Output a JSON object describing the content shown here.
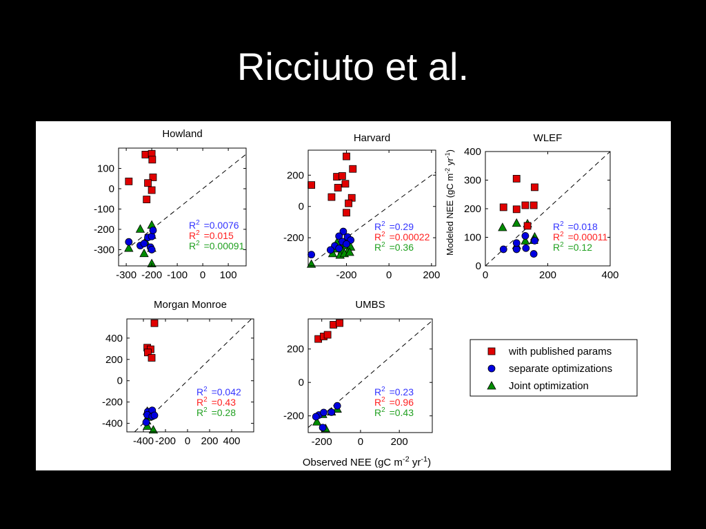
{
  "slide": {
    "title": "Ricciuto et al."
  },
  "colors": {
    "published": "#e00000",
    "separate": "#0000e0",
    "joint": "#008c00",
    "r2_separate": "#3333ff",
    "r2_published": "#ff2020",
    "r2_joint": "#20a020"
  },
  "figure": {
    "y_axis_label": "Modeled NEE (gC m-2 yr-1)",
    "x_axis_label": "Observed NEE (gC m-2 yr-1)"
  },
  "legend": {
    "entries": [
      {
        "label": "with published params",
        "marker": "square",
        "series": "published"
      },
      {
        "label": "separate optimizations",
        "marker": "circle",
        "series": "separate"
      },
      {
        "label": "Joint optimization",
        "marker": "triangle",
        "series": "joint"
      }
    ]
  },
  "chart_data": [
    {
      "type": "scatter",
      "title": "Howland",
      "xlim": [
        -330,
        170
      ],
      "ylim": [
        -380,
        200
      ],
      "xticks": [
        -300,
        -200,
        -100,
        0,
        100
      ],
      "xtick_labels": [
        "-300",
        "-200",
        "-100",
        "0",
        "100"
      ],
      "yticks": [
        100,
        0,
        -100,
        -200,
        -300
      ],
      "ytick_labels": [
        "100",
        "0",
        "-100",
        "-200",
        "-300"
      ],
      "one_to_one_line": true,
      "series": [
        {
          "name": "with published params",
          "marker": "square",
          "points": [
            [
              -225,
              168
            ],
            [
              -200,
              172
            ],
            [
              -198,
              143
            ],
            [
              -290,
              36
            ],
            [
              -195,
              56
            ],
            [
              -215,
              28
            ],
            [
              -200,
              -7
            ],
            [
              -220,
              -53
            ]
          ]
        },
        {
          "name": "separate optimizations",
          "marker": "circle",
          "points": [
            [
              -290,
              -262
            ],
            [
              -245,
              -280
            ],
            [
              -215,
              -240
            ],
            [
              -200,
              -235
            ],
            [
              -195,
              -205
            ],
            [
              -230,
              -270
            ],
            [
              -205,
              -288
            ],
            [
              -200,
              -300
            ]
          ]
        },
        {
          "name": "Joint optimization",
          "marker": "triangle",
          "points": [
            [
              -290,
              -292
            ],
            [
              -245,
              -198
            ],
            [
              -200,
              -178
            ],
            [
              -200,
              -228
            ],
            [
              -225,
              -258
            ],
            [
              -230,
              -318
            ],
            [
              -200,
              -292
            ],
            [
              -200,
              -368
            ]
          ]
        }
      ],
      "r2": [
        {
          "series": "separate",
          "sup": "2",
          "value": "=0.0076"
        },
        {
          "series": "published",
          "sup": "2",
          "value": "=0.015"
        },
        {
          "series": "joint",
          "sup": "2",
          "value": "=0.00091"
        }
      ]
    },
    {
      "type": "scatter",
      "title": "Harvard",
      "xlim": [
        -380,
        220
      ],
      "ylim": [
        -380,
        360
      ],
      "xticks": [
        -200,
        0,
        200
      ],
      "xtick_labels": [
        "-200",
        "0",
        "200"
      ],
      "yticks": [
        200,
        0,
        -200
      ],
      "ytick_labels": [
        "200",
        "0",
        "-200"
      ],
      "one_to_one_line": true,
      "series": [
        {
          "name": "with published params",
          "marker": "square",
          "points": [
            [
              -365,
              137
            ],
            [
              -200,
              320
            ],
            [
              -245,
              190
            ],
            [
              -220,
              195
            ],
            [
              -205,
              145
            ],
            [
              -170,
              240
            ],
            [
              -240,
              120
            ],
            [
              -270,
              60
            ],
            [
              -175,
              55
            ],
            [
              -190,
              20
            ],
            [
              -200,
              -40
            ]
          ]
        },
        {
          "name": "separate optimizations",
          "marker": "circle",
          "points": [
            [
              -365,
              -308
            ],
            [
              -215,
              -160
            ],
            [
              -235,
              -190
            ],
            [
              -195,
              -195
            ],
            [
              -180,
              -215
            ],
            [
              -220,
              -225
            ],
            [
              -200,
              -240
            ],
            [
              -255,
              -252
            ],
            [
              -275,
              -278
            ],
            [
              -235,
              -268
            ]
          ]
        },
        {
          "name": "Joint optimization",
          "marker": "triangle",
          "points": [
            [
              -365,
              -368
            ],
            [
              -245,
              -230
            ],
            [
              -215,
              -238
            ],
            [
              -200,
              -250
            ],
            [
              -180,
              -258
            ],
            [
              -245,
              -270
            ],
            [
              -220,
              -280
            ],
            [
              -195,
              -290
            ],
            [
              -265,
              -300
            ],
            [
              -230,
              -310
            ],
            [
              -210,
              -300
            ],
            [
              -185,
              -292
            ]
          ]
        }
      ],
      "r2": [
        {
          "series": "separate",
          "sup": "2",
          "value": "=0.29"
        },
        {
          "series": "published",
          "sup": "2",
          "value": "=0.00022"
        },
        {
          "series": "joint",
          "sup": "2",
          "value": "=0.36"
        }
      ]
    },
    {
      "type": "scatter",
      "title": "WLEF",
      "xlim": [
        0,
        400
      ],
      "ylim": [
        0,
        400
      ],
      "xticks": [
        0,
        200,
        400
      ],
      "xtick_labels": [
        "0",
        "200",
        "400"
      ],
      "yticks": [
        400,
        300,
        200,
        100,
        0
      ],
      "ytick_labels": [
        "400",
        "300",
        "200",
        "100",
        "0"
      ],
      "one_to_one_line": true,
      "series": [
        {
          "name": "with published params",
          "marker": "square",
          "points": [
            [
              100,
              305
            ],
            [
              158,
              275
            ],
            [
              58,
              205
            ],
            [
              100,
              198
            ],
            [
              128,
              212
            ],
            [
              155,
              212
            ],
            [
              135,
              140
            ]
          ]
        },
        {
          "name": "separate optimizations",
          "marker": "circle",
          "points": [
            [
              58,
              58
            ],
            [
              100,
              58
            ],
            [
              130,
              62
            ],
            [
              155,
              42
            ],
            [
              100,
              80
            ],
            [
              128,
              105
            ],
            [
              158,
              88
            ]
          ]
        },
        {
          "name": "Joint optimization",
          "marker": "triangle",
          "points": [
            [
              55,
              135
            ],
            [
              100,
              150
            ],
            [
              135,
              148
            ],
            [
              158,
              102
            ],
            [
              100,
              72
            ],
            [
              128,
              88
            ],
            [
              155,
              90
            ]
          ]
        }
      ],
      "r2": [
        {
          "series": "separate",
          "sup": "2",
          "value": "=0.018"
        },
        {
          "series": "published",
          "sup": "2",
          "value": "=0.00011"
        },
        {
          "series": "joint",
          "sup": "2",
          "value": "=0.12"
        }
      ]
    },
    {
      "type": "scatter",
      "title": "Morgan Monroe",
      "xlim": [
        -550,
        600
      ],
      "ylim": [
        -480,
        580
      ],
      "xticks": [
        -400,
        -200,
        0,
        200,
        400
      ],
      "xtick_labels": [
        "-400",
        "-200",
        "0",
        "200",
        "400"
      ],
      "yticks": [
        400,
        200,
        0,
        -200,
        -400
      ],
      "ytick_labels": [
        "400",
        "200",
        "0",
        "-200",
        "-400"
      ],
      "one_to_one_line": true,
      "series": [
        {
          "name": "with published params",
          "marker": "square",
          "points": [
            [
              -300,
              540
            ],
            [
              -365,
              310
            ],
            [
              -335,
              295
            ],
            [
              -360,
              265
            ],
            [
              -325,
              215
            ]
          ]
        },
        {
          "name": "separate optimizations",
          "marker": "circle",
          "points": [
            [
              -360,
              -290
            ],
            [
              -320,
              -278
            ],
            [
              -365,
              -320
            ],
            [
              -320,
              -335
            ],
            [
              -300,
              -325
            ],
            [
              -375,
              -390
            ]
          ]
        },
        {
          "name": "Joint optimization",
          "marker": "triangle",
          "points": [
            [
              -365,
              -285
            ],
            [
              -325,
              -285
            ],
            [
              -360,
              -340
            ],
            [
              -370,
              -375
            ],
            [
              -365,
              -425
            ],
            [
              -310,
              -460
            ]
          ]
        }
      ],
      "r2": [
        {
          "series": "separate",
          "sup": "2",
          "value": "=0.042"
        },
        {
          "series": "published",
          "sup": "2",
          "value": "=0.43"
        },
        {
          "series": "joint",
          "sup": "2",
          "value": "=0.28"
        }
      ]
    },
    {
      "type": "scatter",
      "title": "UMBS",
      "xlim": [
        -270,
        370
      ],
      "ylim": [
        -300,
        380
      ],
      "xticks": [
        -200,
        0,
        200
      ],
      "xtick_labels": [
        "-200",
        "0",
        "200"
      ],
      "yticks": [
        200,
        0,
        -200
      ],
      "ytick_labels": [
        "200",
        "0",
        "-200"
      ],
      "one_to_one_line": true,
      "series": [
        {
          "name": "with published params",
          "marker": "square",
          "points": [
            [
              -218,
              260
            ],
            [
              -190,
              275
            ],
            [
              -170,
              285
            ],
            [
              -140,
              345
            ],
            [
              -108,
              355
            ]
          ]
        },
        {
          "name": "separate optimizations",
          "marker": "circle",
          "points": [
            [
              -215,
              -195
            ],
            [
              -190,
              -180
            ],
            [
              -120,
              -140
            ],
            [
              -150,
              -178
            ],
            [
              -230,
              -205
            ],
            [
              -195,
              -270
            ]
          ]
        },
        {
          "name": "Joint optimization",
          "marker": "triangle",
          "points": [
            [
              -225,
              -235
            ],
            [
              -195,
              -190
            ],
            [
              -150,
              -175
            ],
            [
              -120,
              -158
            ],
            [
              -180,
              -275
            ]
          ]
        }
      ],
      "r2": [
        {
          "series": "separate",
          "sup": "2",
          "value": "=0.23"
        },
        {
          "series": "published",
          "sup": "2",
          "value": "=0.96"
        },
        {
          "series": "joint",
          "sup": "2",
          "value": "=0.43"
        }
      ]
    }
  ]
}
